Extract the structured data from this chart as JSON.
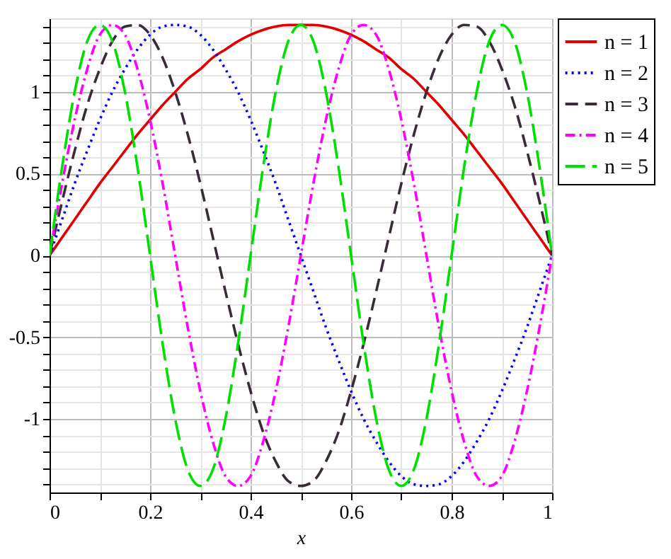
{
  "chart_data": {
    "type": "line",
    "xlabel": "x",
    "xlim": [
      0,
      1
    ],
    "ylim": [
      -1.45,
      1.45
    ],
    "xticks": [
      0,
      {
        "value": 0.1,
        "label": null
      },
      0.2,
      {
        "value": 0.3,
        "label": null
      },
      0.4,
      {
        "value": 0.5,
        "label": null
      },
      0.6,
      {
        "value": 0.7,
        "label": null
      },
      0.8,
      {
        "value": 0.9,
        "label": null
      },
      1
    ],
    "yticks": [
      {
        "value": -1.4,
        "label": null
      },
      {
        "value": -1.3,
        "label": null
      },
      {
        "value": -1.2,
        "label": null
      },
      {
        "value": -1.1,
        "label": null
      },
      -1,
      {
        "value": -0.9,
        "label": null
      },
      {
        "value": -0.8,
        "label": null
      },
      {
        "value": -0.7,
        "label": null
      },
      {
        "value": -0.6,
        "label": null
      },
      -0.5,
      {
        "value": -0.4,
        "label": null
      },
      {
        "value": -0.3,
        "label": null
      },
      {
        "value": -0.2,
        "label": null
      },
      {
        "value": -0.1,
        "label": null
      },
      0,
      {
        "value": 0.1,
        "label": null
      },
      {
        "value": 0.2,
        "label": null
      },
      {
        "value": 0.3,
        "label": null
      },
      {
        "value": 0.4,
        "label": null
      },
      0.5,
      {
        "value": 0.6,
        "label": null
      },
      {
        "value": 0.7,
        "label": null
      },
      {
        "value": 0.8,
        "label": null
      },
      {
        "value": 0.9,
        "label": null
      },
      1,
      {
        "value": 1.1,
        "label": null
      },
      {
        "value": 1.2,
        "label": null
      },
      {
        "value": 1.3,
        "label": null
      },
      {
        "value": 1.4,
        "label": null
      }
    ],
    "grid": true,
    "legend": "right",
    "marker": "none",
    "x": [
      0,
      0.025,
      0.05,
      0.075,
      0.1,
      0.125,
      0.15,
      0.175,
      0.2,
      0.225,
      0.25,
      0.275,
      0.3,
      0.325,
      0.35,
      0.375,
      0.4,
      0.425,
      0.45,
      0.475,
      0.5,
      0.525,
      0.55,
      0.575,
      0.6,
      0.625,
      0.65,
      0.675,
      0.7,
      0.725,
      0.75,
      0.775,
      0.8,
      0.825,
      0.85,
      0.875,
      0.9,
      0.925,
      0.95,
      0.975,
      1
    ],
    "series": [
      {
        "name": "n = 1",
        "color": "#e00000",
        "line_style": "solid",
        "values": [
          0,
          0.11,
          0.22,
          0.33,
          0.44,
          0.54,
          0.64,
          0.74,
          0.83,
          0.92,
          1.0,
          1.08,
          1.14,
          1.21,
          1.26,
          1.31,
          1.35,
          1.38,
          1.4,
          1.41,
          1.41,
          1.41,
          1.4,
          1.38,
          1.35,
          1.31,
          1.26,
          1.21,
          1.14,
          1.08,
          1.0,
          0.92,
          0.83,
          0.74,
          0.64,
          0.54,
          0.44,
          0.33,
          0.22,
          0.11,
          0
        ]
      },
      {
        "name": "n = 2",
        "color": "#0000ff",
        "line_style": "dotted",
        "values": [
          0,
          0.22,
          0.44,
          0.64,
          0.83,
          1.0,
          1.14,
          1.26,
          1.35,
          1.4,
          1.41,
          1.4,
          1.35,
          1.26,
          1.14,
          1.0,
          0.83,
          0.64,
          0.44,
          0.22,
          0,
          -0.22,
          -0.44,
          -0.64,
          -0.83,
          -1.0,
          -1.14,
          -1.26,
          -1.35,
          -1.4,
          -1.41,
          -1.4,
          -1.35,
          -1.26,
          -1.14,
          -1.0,
          -0.83,
          -0.64,
          -0.44,
          -0.22,
          0
        ]
      },
      {
        "name": "n = 3",
        "color": "#3a2a3a",
        "line_style": "dashed",
        "values": [
          0,
          0.33,
          0.64,
          0.92,
          1.14,
          1.31,
          1.4,
          1.41,
          1.35,
          1.21,
          1.0,
          0.74,
          0.44,
          0.11,
          -0.22,
          -0.54,
          -0.83,
          -1.08,
          -1.26,
          -1.38,
          -1.41,
          -1.38,
          -1.26,
          -1.08,
          -0.83,
          -0.54,
          -0.22,
          0.11,
          0.44,
          0.74,
          1.0,
          1.21,
          1.35,
          1.41,
          1.4,
          1.31,
          1.14,
          0.92,
          0.64,
          0.33,
          0
        ]
      },
      {
        "name": "n = 4",
        "color": "#ff00ff",
        "line_style": "dashdot",
        "values": [
          0,
          0.44,
          0.83,
          1.14,
          1.35,
          1.41,
          1.35,
          1.14,
          0.83,
          0.44,
          0,
          -0.44,
          -0.83,
          -1.14,
          -1.35,
          -1.41,
          -1.35,
          -1.14,
          -0.83,
          -0.44,
          0,
          0.44,
          0.83,
          1.14,
          1.35,
          1.41,
          1.35,
          1.14,
          0.83,
          0.44,
          0,
          -0.44,
          -0.83,
          -1.14,
          -1.35,
          -1.41,
          -1.35,
          -1.14,
          -0.83,
          -0.44,
          0
        ]
      },
      {
        "name": "n = 5",
        "color": "#00e000",
        "line_style": "longdash",
        "values": [
          0,
          0.54,
          1.0,
          1.31,
          1.41,
          1.31,
          1.0,
          0.54,
          0,
          -0.54,
          -1.0,
          -1.31,
          -1.41,
          -1.31,
          -1.0,
          -0.54,
          0,
          0.54,
          1.0,
          1.31,
          1.41,
          1.31,
          1.0,
          0.54,
          0,
          -0.54,
          -1.0,
          -1.31,
          -1.41,
          -1.31,
          -1.0,
          -0.54,
          0,
          0.54,
          1.0,
          1.31,
          1.41,
          1.31,
          1.0,
          0.54,
          0
        ]
      }
    ]
  }
}
